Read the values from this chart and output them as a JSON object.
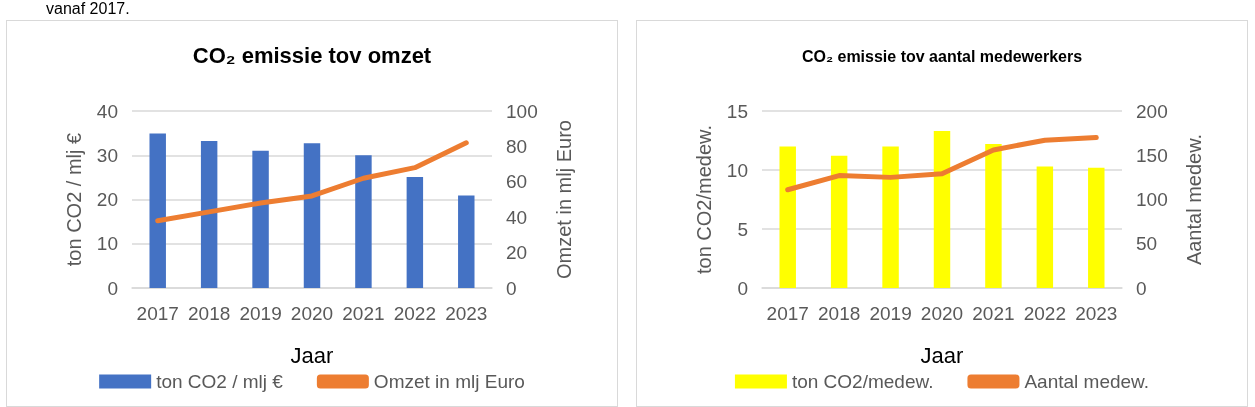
{
  "chart_data": [
    {
      "type": "bar",
      "title": "CO₂ emissie tov omzet",
      "xlabel": "Jaar",
      "ylabel": "ton CO2 / mlj €",
      "y2label": "Omzet in mlj Euro",
      "annotations": [
        "vanaf 2017."
      ],
      "categories": [
        "2017",
        "2018",
        "2019",
        "2020",
        "2021",
        "2022",
        "2023"
      ],
      "series": [
        {
          "name": "ton CO2 / mlj €",
          "color": "#4472c4",
          "values": [
            34.9,
            33.2,
            31.0,
            32.7,
            30.0,
            25.1,
            20.9
          ]
        },
        {
          "name": "Omzet in mlj Euro",
          "type": "line",
          "axis": "y2",
          "color": "#ed7d31",
          "values": [
            38,
            43,
            48,
            52,
            62,
            68,
            82
          ]
        }
      ],
      "ylim": [
        0,
        40
      ],
      "yticks": [
        0,
        10,
        20,
        30,
        40
      ],
      "y2lim": [
        0,
        100
      ],
      "y2ticks": [
        0,
        20,
        40,
        60,
        80,
        100
      ],
      "grid": "y",
      "legend": "bottom",
      "marker": "none"
    },
    {
      "type": "bar",
      "title": "CO₂ emissie tov aantal medewerkers",
      "xlabel": "Jaar",
      "ylabel": "ton CO2/medew.",
      "y2label": "Aantal medew.",
      "categories": [
        "2017",
        "2018",
        "2019",
        "2020",
        "2021",
        "2022",
        "2023"
      ],
      "series": [
        {
          "name": "ton CO2/medew.",
          "color": "#ffff00",
          "values": [
            12.0,
            11.2,
            12.0,
            13.3,
            12.2,
            10.3,
            10.2
          ]
        },
        {
          "name": "Aantal medew.",
          "type": "line",
          "axis": "y2",
          "color": "#ed7d31",
          "values": [
            111,
            127,
            125,
            129,
            156,
            167,
            170
          ]
        }
      ],
      "ylim": [
        0,
        15
      ],
      "yticks": [
        0,
        5,
        10,
        15
      ],
      "y2lim": [
        0,
        200
      ],
      "y2ticks": [
        0,
        50,
        100,
        150,
        200
      ],
      "grid": "y",
      "legend": "bottom",
      "marker": "none"
    }
  ]
}
